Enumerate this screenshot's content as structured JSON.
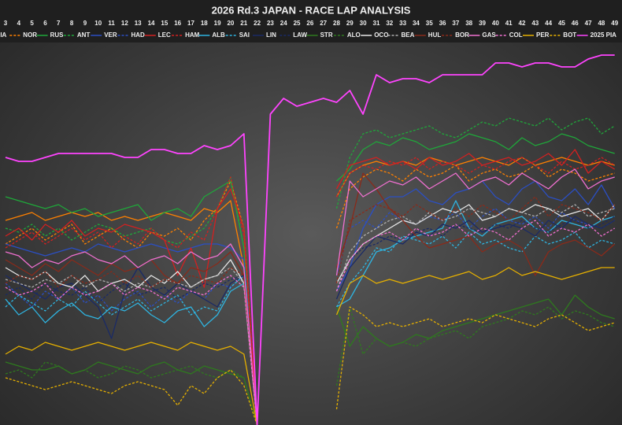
{
  "chart_data": {
    "type": "line",
    "title": "2026 Rd.3 JAPAN - RACE LAP ANALYSIS",
    "categories": [
      "3",
      "4",
      "5",
      "6",
      "7",
      "8",
      "9",
      "10",
      "11",
      "12",
      "13",
      "14",
      "15",
      "16",
      "17",
      "18",
      "19",
      "20",
      "21",
      "22",
      "23",
      "24",
      "25",
      "26",
      "27",
      "28",
      "29",
      "30",
      "31",
      "32",
      "33",
      "34",
      "35",
      "36",
      "37",
      "38",
      "39",
      "40",
      "41",
      "42",
      "43",
      "44",
      "45",
      "46",
      "47",
      "48",
      "49"
    ],
    "ylim": [
      0,
      100
    ],
    "series": [
      {
        "name": "PIA",
        "color": "#ff8000",
        "dash": false,
        "values": [
          52,
          53,
          54,
          52,
          53,
          54,
          53,
          54,
          52,
          53,
          52,
          53,
          54,
          53,
          52,
          55,
          54,
          57,
          40,
          0,
          null,
          null,
          null,
          null,
          null,
          58,
          64,
          66,
          67,
          66,
          67,
          66,
          68,
          67,
          66,
          67,
          68,
          67,
          66,
          68,
          66,
          67,
          68,
          67,
          66,
          67,
          66
        ]
      },
      {
        "name": "NOR",
        "color": "#ff8000",
        "dash": true,
        "values": [
          46,
          48,
          50,
          47,
          49,
          51,
          46,
          48,
          50,
          47,
          45,
          49,
          48,
          50,
          47,
          52,
          55,
          62,
          50,
          0,
          null,
          null,
          null,
          null,
          null,
          50,
          60,
          63,
          65,
          64,
          62,
          65,
          63,
          64,
          66,
          62,
          64,
          65,
          63,
          64,
          66,
          63,
          65,
          64,
          62,
          63,
          64
        ]
      },
      {
        "name": "RUS",
        "color": "#1fa83a",
        "dash": false,
        "values": [
          58,
          57,
          56,
          55,
          56,
          54,
          55,
          53,
          54,
          55,
          56,
          52,
          54,
          55,
          53,
          58,
          60,
          62,
          45,
          0,
          null,
          null,
          null,
          null,
          null,
          62,
          65,
          70,
          72,
          71,
          73,
          72,
          70,
          71,
          72,
          74,
          73,
          72,
          70,
          73,
          71,
          72,
          74,
          73,
          71,
          70,
          69
        ]
      },
      {
        "name": "ANT",
        "color": "#1fa83a",
        "dash": true,
        "values": [
          50,
          49,
          51,
          48,
          50,
          47,
          49,
          51,
          50,
          48,
          49,
          50,
          47,
          46,
          48,
          50,
          55,
          63,
          45,
          0,
          null,
          null,
          null,
          null,
          null,
          55,
          68,
          74,
          75,
          73,
          74,
          75,
          76,
          74,
          73,
          75,
          77,
          76,
          78,
          77,
          76,
          78,
          75,
          77,
          78,
          74,
          76
        ]
      },
      {
        "name": "VER",
        "color": "#2b4fc4",
        "dash": false,
        "values": [
          46,
          45,
          44,
          43,
          44,
          45,
          44,
          46,
          45,
          44,
          45,
          46,
          45,
          44,
          45,
          46,
          46,
          45,
          42,
          0,
          null,
          null,
          null,
          null,
          null,
          34,
          40,
          50,
          56,
          58,
          58,
          60,
          57,
          56,
          59,
          60,
          62,
          58,
          56,
          60,
          62,
          58,
          57,
          60,
          56,
          61,
          55
        ]
      },
      {
        "name": "HAD",
        "color": "#2b4fc4",
        "dash": true,
        "values": [
          36,
          33,
          30,
          34,
          32,
          35,
          31,
          33,
          29,
          32,
          34,
          30,
          33,
          31,
          34,
          32,
          36,
          35,
          38,
          0,
          null,
          null,
          null,
          null,
          null,
          38,
          50,
          52,
          50,
          54,
          52,
          51,
          53,
          52,
          54,
          50,
          53,
          55,
          52,
          51,
          53,
          50,
          54,
          52,
          51,
          50,
          52
        ]
      },
      {
        "name": "LEC",
        "color": "#d42020",
        "dash": false,
        "values": [
          48,
          50,
          47,
          51,
          49,
          52,
          48,
          50,
          49,
          51,
          50,
          49,
          47,
          38,
          45,
          35,
          55,
          60,
          50,
          0,
          null,
          null,
          null,
          null,
          null,
          60,
          66,
          67,
          68,
          66,
          67,
          65,
          68,
          66,
          67,
          69,
          66,
          67,
          68,
          66,
          67,
          69,
          66,
          70,
          64,
          67,
          65
        ]
      },
      {
        "name": "HAM",
        "color": "#d42020",
        "dash": true,
        "values": [
          45,
          47,
          49,
          46,
          48,
          50,
          47,
          49,
          45,
          48,
          46,
          50,
          47,
          45,
          49,
          47,
          55,
          63,
          48,
          0,
          null,
          null,
          null,
          null,
          null,
          58,
          64,
          66,
          65,
          67,
          66,
          68,
          65,
          67,
          66,
          64,
          66,
          65,
          67,
          68,
          66,
          64,
          67,
          65,
          66,
          68,
          66
        ]
      },
      {
        "name": "ALB",
        "color": "#2fb4e0",
        "dash": false,
        "values": [
          32,
          28,
          30,
          26,
          29,
          31,
          28,
          27,
          30,
          29,
          31,
          28,
          26,
          29,
          30,
          25,
          28,
          34,
          36,
          0,
          null,
          null,
          null,
          null,
          null,
          30,
          32,
          38,
          44,
          45,
          47,
          48,
          49,
          50,
          57,
          50,
          48,
          51,
          52,
          53,
          50,
          49,
          52,
          51,
          50,
          52,
          53
        ]
      },
      {
        "name": "SAI",
        "color": "#2fb4e0",
        "dash": true,
        "values": [
          30,
          33,
          31,
          29,
          32,
          30,
          34,
          31,
          28,
          30,
          32,
          29,
          31,
          33,
          28,
          30,
          29,
          35,
          38,
          0,
          null,
          null,
          null,
          null,
          null,
          30,
          36,
          40,
          45,
          44,
          48,
          47,
          46,
          48,
          45,
          49,
          46,
          47,
          45,
          44,
          48,
          46,
          47,
          49,
          45,
          47,
          46
        ]
      },
      {
        "name": "LIN",
        "color": "#1a2a66",
        "dash": false,
        "values": [
          38,
          36,
          34,
          32,
          35,
          36,
          33,
          30,
          22,
          34,
          40,
          35,
          33,
          36,
          34,
          32,
          30,
          36,
          38,
          0,
          null,
          null,
          null,
          null,
          null,
          32,
          40,
          44,
          48,
          47,
          46,
          49,
          48,
          51,
          50,
          52,
          49,
          50,
          51,
          50,
          48,
          52,
          50,
          53,
          51,
          50,
          52
        ]
      },
      {
        "name": "LAW",
        "color": "#1a2a66",
        "dash": true,
        "values": [
          33,
          35,
          32,
          36,
          34,
          33,
          35,
          31,
          34,
          36,
          33,
          34,
          35,
          32,
          34,
          36,
          35,
          37,
          38,
          0,
          null,
          null,
          null,
          null,
          null,
          36,
          42,
          45,
          46,
          48,
          47,
          49,
          50,
          48,
          51,
          50,
          49,
          51,
          50,
          52,
          50,
          49,
          51,
          52,
          50,
          51,
          53
        ]
      },
      {
        "name": "STR",
        "color": "#2e7a1e",
        "dash": false,
        "values": [
          16,
          15,
          14,
          14,
          15,
          13,
          14,
          16,
          15,
          14,
          13,
          15,
          16,
          14,
          13,
          15,
          14,
          13,
          12,
          0,
          null,
          null,
          null,
          null,
          null,
          30,
          20,
          25,
          22,
          20,
          21,
          23,
          22,
          24,
          25,
          26,
          27,
          28,
          29,
          30,
          31,
          32,
          28,
          33,
          30,
          28,
          27
        ]
      },
      {
        "name": "ALO",
        "color": "#2e7a1e",
        "dash": true,
        "values": [
          13,
          14,
          12,
          16,
          15,
          13,
          14,
          12,
          13,
          15,
          14,
          12,
          13,
          14,
          15,
          13,
          12,
          14,
          12,
          0,
          null,
          null,
          null,
          null,
          null,
          10,
          30,
          18,
          22,
          20,
          21,
          20,
          22,
          23,
          24,
          22,
          25,
          26,
          27,
          29,
          28,
          30,
          27,
          29,
          28,
          26,
          25
        ]
      },
      {
        "name": "OCO",
        "color": "#e8e8e8",
        "dash": false,
        "values": [
          40,
          38,
          37,
          39,
          36,
          35,
          38,
          34,
          36,
          37,
          35,
          38,
          36,
          39,
          35,
          37,
          38,
          42,
          36,
          0,
          null,
          null,
          null,
          null,
          null,
          36,
          42,
          46,
          48,
          50,
          52,
          51,
          53,
          55,
          54,
          56,
          52,
          53,
          55,
          54,
          56,
          55,
          53,
          54,
          55,
          52,
          56
        ]
      },
      {
        "name": "BEA",
        "color": "#b0b0b0",
        "dash": true,
        "values": [
          37,
          36,
          35,
          37,
          36,
          38,
          35,
          37,
          36,
          34,
          36,
          35,
          37,
          36,
          35,
          37,
          38,
          40,
          36,
          0,
          null,
          null,
          null,
          null,
          null,
          34,
          44,
          48,
          50,
          52,
          53,
          51,
          54,
          52,
          53,
          55,
          54,
          53,
          55,
          54,
          53,
          55,
          54,
          56,
          53,
          54,
          55
        ]
      },
      {
        "name": "HUL",
        "color": "#8a2a1a",
        "dash": false,
        "values": [
          42,
          40,
          38,
          41,
          39,
          42,
          40,
          38,
          41,
          39,
          40,
          42,
          38,
          36,
          40,
          39,
          41,
          44,
          38,
          0,
          null,
          null,
          null,
          null,
          null,
          40,
          50,
          64,
          60,
          55,
          52,
          48,
          45,
          46,
          47,
          48,
          44,
          46,
          47,
          45,
          38,
          44,
          46,
          47,
          45,
          43,
          46
        ]
      },
      {
        "name": "BOR",
        "color": "#8a2a1a",
        "dash": true,
        "values": [
          36,
          38,
          37,
          39,
          35,
          38,
          36,
          37,
          39,
          36,
          38,
          35,
          37,
          36,
          38,
          37,
          36,
          40,
          38,
          0,
          null,
          null,
          null,
          null,
          null,
          36,
          52,
          54,
          56,
          55,
          53,
          56,
          54,
          52,
          55,
          53,
          56,
          54,
          52,
          55,
          58,
          53,
          56,
          55,
          54,
          52,
          56
        ]
      },
      {
        "name": "GAS",
        "color": "#f070d0",
        "dash": false,
        "values": [
          44,
          43,
          40,
          42,
          41,
          43,
          44,
          42,
          41,
          43,
          40,
          42,
          43,
          41,
          44,
          42,
          43,
          46,
          40,
          0,
          null,
          null,
          null,
          null,
          null,
          38,
          62,
          58,
          60,
          62,
          61,
          63,
          60,
          62,
          64,
          60,
          62,
          63,
          61,
          64,
          62,
          60,
          63,
          65,
          60,
          62,
          63
        ]
      },
      {
        "name": "COL",
        "color": "#f070d0",
        "dash": true,
        "values": [
          35,
          33,
          34,
          36,
          32,
          35,
          33,
          34,
          36,
          33,
          35,
          34,
          32,
          35,
          34,
          33,
          36,
          38,
          35,
          0,
          null,
          null,
          null,
          null,
          null,
          34,
          42,
          46,
          48,
          49,
          47,
          50,
          48,
          49,
          51,
          48,
          50,
          49,
          47,
          50,
          52,
          48,
          50,
          49,
          51,
          48,
          50
        ]
      },
      {
        "name": "PER",
        "color": "#e6b000",
        "dash": false,
        "values": [
          18,
          20,
          19,
          21,
          20,
          19,
          20,
          21,
          20,
          19,
          20,
          21,
          20,
          19,
          21,
          20,
          19,
          20,
          18,
          0,
          null,
          null,
          null,
          null,
          null,
          28,
          36,
          38,
          36,
          37,
          36,
          37,
          38,
          37,
          38,
          39,
          37,
          38,
          40,
          38,
          39,
          38,
          37,
          38,
          39,
          40,
          40
        ]
      },
      {
        "name": "BOT",
        "color": "#e6b000",
        "dash": true,
        "values": [
          12,
          11,
          10,
          9,
          10,
          11,
          10,
          9,
          8,
          10,
          11,
          10,
          9,
          5,
          10,
          8,
          12,
          14,
          10,
          0,
          null,
          null,
          null,
          null,
          null,
          4,
          30,
          28,
          25,
          26,
          25,
          26,
          27,
          25,
          26,
          27,
          26,
          28,
          27,
          26,
          25,
          27,
          28,
          26,
          24,
          25,
          26
        ]
      },
      {
        "name": "2025 PIA",
        "color": "#ff44ff",
        "dash": false,
        "values": [
          68,
          67,
          67,
          68,
          69,
          69,
          69,
          69,
          69,
          68,
          68,
          70,
          70,
          69,
          69,
          71,
          70,
          71,
          74,
          0,
          79,
          83,
          81,
          82,
          83,
          82,
          85,
          79,
          89,
          87,
          88,
          88,
          87,
          89,
          89,
          89,
          89,
          92,
          92,
          91,
          92,
          92,
          91,
          91,
          93,
          94,
          94
        ]
      }
    ]
  }
}
